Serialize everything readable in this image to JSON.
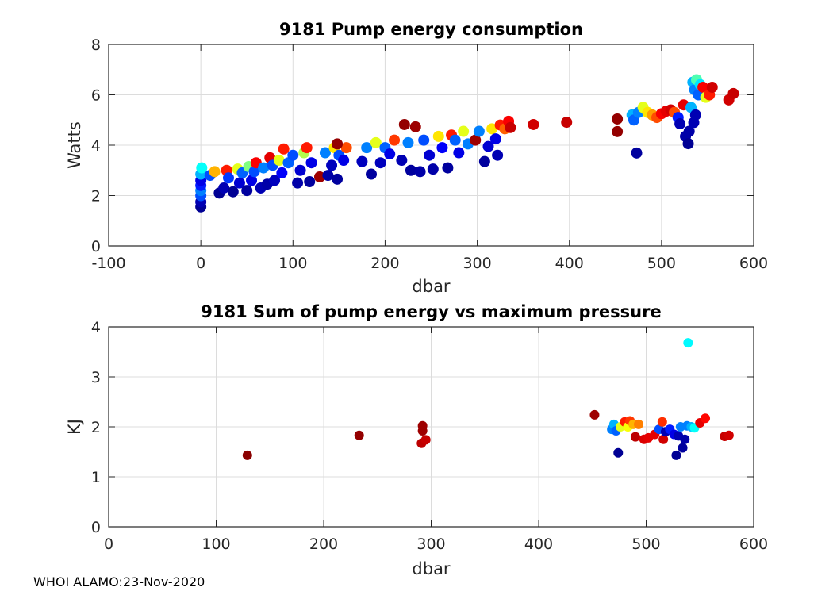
{
  "footer": "WHOI ALAMO:23-Nov-2020",
  "colormap": "jet",
  "chart_data": [
    {
      "type": "scatter",
      "title": "9181 Pump energy consumption",
      "xlabel": "dbar",
      "ylabel": "Watts",
      "xlim": [
        -100,
        600
      ],
      "ylim": [
        0,
        8
      ],
      "xticks": [
        "-100",
        "0",
        "100",
        "200",
        "300",
        "400",
        "500",
        "600"
      ],
      "yticks": [
        "0",
        "2",
        "4",
        "6",
        "8"
      ],
      "grid": true,
      "color_note": "point color encodes profile index on jet scale (0=navy .. 1=dark red)",
      "points": [
        {
          "x": 0,
          "y": 1.55,
          "c": 0.02
        },
        {
          "x": 0,
          "y": 1.75,
          "c": 0.05
        },
        {
          "x": 0,
          "y": 2.0,
          "c": 0.2
        },
        {
          "x": 0,
          "y": 2.2,
          "c": 0.25
        },
        {
          "x": 0,
          "y": 2.4,
          "c": 0.15
        },
        {
          "x": 0,
          "y": 2.6,
          "c": 0.1
        },
        {
          "x": 0,
          "y": 2.85,
          "c": 0.3
        },
        {
          "x": 1,
          "y": 3.1,
          "c": 0.38
        },
        {
          "x": 10,
          "y": 2.8,
          "c": 0.2
        },
        {
          "x": 15,
          "y": 2.95,
          "c": 0.7
        },
        {
          "x": 20,
          "y": 2.1,
          "c": 0.02
        },
        {
          "x": 25,
          "y": 2.3,
          "c": 0.05
        },
        {
          "x": 28,
          "y": 3.0,
          "c": 0.85
        },
        {
          "x": 30,
          "y": 2.7,
          "c": 0.18
        },
        {
          "x": 35,
          "y": 2.15,
          "c": 0.02
        },
        {
          "x": 40,
          "y": 3.05,
          "c": 0.6
        },
        {
          "x": 42,
          "y": 2.5,
          "c": 0.08
        },
        {
          "x": 45,
          "y": 2.9,
          "c": 0.22
        },
        {
          "x": 50,
          "y": 2.2,
          "c": 0.03
        },
        {
          "x": 52,
          "y": 3.15,
          "c": 0.5
        },
        {
          "x": 55,
          "y": 2.6,
          "c": 0.1
        },
        {
          "x": 58,
          "y": 2.95,
          "c": 0.2
        },
        {
          "x": 60,
          "y": 3.3,
          "c": 0.88
        },
        {
          "x": 65,
          "y": 2.3,
          "c": 0.05
        },
        {
          "x": 68,
          "y": 3.1,
          "c": 0.25
        },
        {
          "x": 72,
          "y": 2.45,
          "c": 0.04
        },
        {
          "x": 75,
          "y": 3.5,
          "c": 0.9
        },
        {
          "x": 78,
          "y": 3.2,
          "c": 0.2
        },
        {
          "x": 80,
          "y": 2.6,
          "c": 0.06
        },
        {
          "x": 85,
          "y": 3.4,
          "c": 0.6
        },
        {
          "x": 88,
          "y": 2.9,
          "c": 0.12
        },
        {
          "x": 90,
          "y": 3.85,
          "c": 0.85
        },
        {
          "x": 95,
          "y": 3.3,
          "c": 0.22
        },
        {
          "x": 100,
          "y": 3.6,
          "c": 0.2
        },
        {
          "x": 105,
          "y": 2.5,
          "c": 0.04
        },
        {
          "x": 108,
          "y": 3.0,
          "c": 0.08
        },
        {
          "x": 112,
          "y": 3.7,
          "c": 0.55
        },
        {
          "x": 115,
          "y": 3.9,
          "c": 0.85
        },
        {
          "x": 118,
          "y": 2.55,
          "c": 0.03
        },
        {
          "x": 120,
          "y": 3.3,
          "c": 0.1
        },
        {
          "x": 129,
          "y": 2.74,
          "c": 0.97
        },
        {
          "x": 135,
          "y": 3.7,
          "c": 0.25
        },
        {
          "x": 138,
          "y": 2.8,
          "c": 0.04
        },
        {
          "x": 142,
          "y": 3.2,
          "c": 0.06
        },
        {
          "x": 145,
          "y": 3.9,
          "c": 0.65
        },
        {
          "x": 148,
          "y": 2.65,
          "c": 0.03
        },
        {
          "x": 150,
          "y": 3.6,
          "c": 0.2
        },
        {
          "x": 155,
          "y": 3.4,
          "c": 0.1
        },
        {
          "x": 158,
          "y": 3.9,
          "c": 0.8
        },
        {
          "x": 148,
          "y": 4.05,
          "c": 0.98
        },
        {
          "x": 175,
          "y": 3.35,
          "c": 0.06
        },
        {
          "x": 180,
          "y": 3.9,
          "c": 0.25
        },
        {
          "x": 185,
          "y": 2.85,
          "c": 0.03
        },
        {
          "x": 190,
          "y": 4.1,
          "c": 0.6
        },
        {
          "x": 195,
          "y": 3.3,
          "c": 0.06
        },
        {
          "x": 200,
          "y": 3.9,
          "c": 0.22
        },
        {
          "x": 205,
          "y": 3.65,
          "c": 0.1
        },
        {
          "x": 210,
          "y": 4.2,
          "c": 0.82
        },
        {
          "x": 218,
          "y": 3.4,
          "c": 0.05
        },
        {
          "x": 221,
          "y": 4.82,
          "c": 0.98
        },
        {
          "x": 225,
          "y": 4.1,
          "c": 0.25
        },
        {
          "x": 228,
          "y": 3.0,
          "c": 0.03
        },
        {
          "x": 233,
          "y": 4.73,
          "c": 0.97
        },
        {
          "x": 238,
          "y": 2.95,
          "c": 0.04
        },
        {
          "x": 242,
          "y": 4.2,
          "c": 0.2
        },
        {
          "x": 248,
          "y": 3.6,
          "c": 0.08
        },
        {
          "x": 252,
          "y": 3.05,
          "c": 0.04
        },
        {
          "x": 258,
          "y": 4.35,
          "c": 0.65
        },
        {
          "x": 262,
          "y": 3.9,
          "c": 0.12
        },
        {
          "x": 268,
          "y": 3.1,
          "c": 0.03
        },
        {
          "x": 272,
          "y": 4.4,
          "c": 0.85
        },
        {
          "x": 276,
          "y": 4.2,
          "c": 0.22
        },
        {
          "x": 280,
          "y": 3.7,
          "c": 0.1
        },
        {
          "x": 285,
          "y": 4.55,
          "c": 0.6
        },
        {
          "x": 290,
          "y": 4.05,
          "c": 0.25
        },
        {
          "x": 298,
          "y": 4.2,
          "c": 0.97
        },
        {
          "x": 302,
          "y": 4.55,
          "c": 0.25
        },
        {
          "x": 308,
          "y": 3.35,
          "c": 0.03
        },
        {
          "x": 312,
          "y": 3.95,
          "c": 0.08
        },
        {
          "x": 316,
          "y": 4.65,
          "c": 0.65
        },
        {
          "x": 320,
          "y": 4.25,
          "c": 0.1
        },
        {
          "x": 322,
          "y": 3.6,
          "c": 0.05
        },
        {
          "x": 325,
          "y": 4.8,
          "c": 0.85
        },
        {
          "x": 330,
          "y": 4.65,
          "c": 0.78
        },
        {
          "x": 334,
          "y": 4.95,
          "c": 0.88
        },
        {
          "x": 336,
          "y": 4.7,
          "c": 0.93
        },
        {
          "x": 361,
          "y": 4.82,
          "c": 0.92
        },
        {
          "x": 397,
          "y": 4.91,
          "c": 0.93
        },
        {
          "x": 452,
          "y": 5.04,
          "c": 0.98
        },
        {
          "x": 452,
          "y": 4.54,
          "c": 0.98
        },
        {
          "x": 468,
          "y": 5.2,
          "c": 0.3
        },
        {
          "x": 470,
          "y": 5.0,
          "c": 0.22
        },
        {
          "x": 473,
          "y": 3.69,
          "c": 0.03
        },
        {
          "x": 475,
          "y": 5.3,
          "c": 0.25
        },
        {
          "x": 480,
          "y": 5.5,
          "c": 0.6
        },
        {
          "x": 485,
          "y": 5.3,
          "c": 0.65
        },
        {
          "x": 490,
          "y": 5.2,
          "c": 0.72
        },
        {
          "x": 495,
          "y": 5.1,
          "c": 0.8
        },
        {
          "x": 500,
          "y": 5.25,
          "c": 0.88
        },
        {
          "x": 505,
          "y": 5.35,
          "c": 0.9
        },
        {
          "x": 510,
          "y": 5.4,
          "c": 0.92
        },
        {
          "x": 514,
          "y": 5.3,
          "c": 0.8
        },
        {
          "x": 518,
          "y": 5.1,
          "c": 0.15
        },
        {
          "x": 520,
          "y": 4.85,
          "c": 0.05
        },
        {
          "x": 524,
          "y": 5.6,
          "c": 0.9
        },
        {
          "x": 526,
          "y": 4.35,
          "c": 0.04
        },
        {
          "x": 529,
          "y": 4.06,
          "c": 0.02
        },
        {
          "x": 530,
          "y": 4.55,
          "c": 0.04
        },
        {
          "x": 532,
          "y": 5.5,
          "c": 0.3
        },
        {
          "x": 535,
          "y": 4.9,
          "c": 0.05
        },
        {
          "x": 537,
          "y": 5.2,
          "c": 0.05
        },
        {
          "x": 534,
          "y": 6.5,
          "c": 0.3
        },
        {
          "x": 536,
          "y": 6.2,
          "c": 0.25
        },
        {
          "x": 538,
          "y": 6.6,
          "c": 0.45
        },
        {
          "x": 540,
          "y": 6.0,
          "c": 0.22
        },
        {
          "x": 542,
          "y": 6.4,
          "c": 0.35
        },
        {
          "x": 545,
          "y": 6.3,
          "c": 0.88
        },
        {
          "x": 548,
          "y": 5.9,
          "c": 0.6
        },
        {
          "x": 552,
          "y": 6.0,
          "c": 0.85
        },
        {
          "x": 555,
          "y": 6.3,
          "c": 0.92
        },
        {
          "x": 573,
          "y": 5.8,
          "c": 0.92
        },
        {
          "x": 578,
          "y": 6.05,
          "c": 0.93
        }
      ]
    },
    {
      "type": "scatter",
      "title": "9181 Sum of pump energy vs maximum pressure",
      "xlabel": "dbar",
      "ylabel": "KJ",
      "xlim": [
        0,
        600
      ],
      "ylim": [
        0,
        4
      ],
      "xticks": [
        "0",
        "100",
        "200",
        "300",
        "400",
        "500",
        "600"
      ],
      "yticks": [
        "0",
        "1",
        "2",
        "3",
        "4"
      ],
      "grid": true,
      "points": [
        {
          "x": 129,
          "y": 1.43,
          "c": 0.99
        },
        {
          "x": 233,
          "y": 1.83,
          "c": 0.98
        },
        {
          "x": 292,
          "y": 2.02,
          "c": 0.97
        },
        {
          "x": 292,
          "y": 1.92,
          "c": 0.97
        },
        {
          "x": 291,
          "y": 1.67,
          "c": 0.94
        },
        {
          "x": 295,
          "y": 1.74,
          "c": 0.93
        },
        {
          "x": 452,
          "y": 2.24,
          "c": 0.97
        },
        {
          "x": 468,
          "y": 1.95,
          "c": 0.25
        },
        {
          "x": 470,
          "y": 2.05,
          "c": 0.3
        },
        {
          "x": 472,
          "y": 1.92,
          "c": 0.22
        },
        {
          "x": 474,
          "y": 1.48,
          "c": 0.02
        },
        {
          "x": 476,
          "y": 2.0,
          "c": 0.6
        },
        {
          "x": 480,
          "y": 2.1,
          "c": 0.85
        },
        {
          "x": 483,
          "y": 2.0,
          "c": 0.62
        },
        {
          "x": 485,
          "y": 2.12,
          "c": 0.82
        },
        {
          "x": 488,
          "y": 2.05,
          "c": 0.7
        },
        {
          "x": 490,
          "y": 1.8,
          "c": 0.94
        },
        {
          "x": 493,
          "y": 2.05,
          "c": 0.75
        },
        {
          "x": 498,
          "y": 1.75,
          "c": 0.91
        },
        {
          "x": 502,
          "y": 1.78,
          "c": 0.9
        },
        {
          "x": 508,
          "y": 1.85,
          "c": 0.9
        },
        {
          "x": 512,
          "y": 1.95,
          "c": 0.2
        },
        {
          "x": 515,
          "y": 2.1,
          "c": 0.83
        },
        {
          "x": 516,
          "y": 1.75,
          "c": 0.92
        },
        {
          "x": 518,
          "y": 1.9,
          "c": 0.05
        },
        {
          "x": 522,
          "y": 1.95,
          "c": 0.15
        },
        {
          "x": 526,
          "y": 1.85,
          "c": 0.1
        },
        {
          "x": 528,
          "y": 1.43,
          "c": 0.02
        },
        {
          "x": 530,
          "y": 1.82,
          "c": 0.05
        },
        {
          "x": 532,
          "y": 2.0,
          "c": 0.25
        },
        {
          "x": 534,
          "y": 1.58,
          "c": 0.03
        },
        {
          "x": 536,
          "y": 1.75,
          "c": 0.04
        },
        {
          "x": 538,
          "y": 2.02,
          "c": 0.25
        },
        {
          "x": 539,
          "y": 3.68,
          "c": 0.37
        },
        {
          "x": 542,
          "y": 2.0,
          "c": 0.3
        },
        {
          "x": 545,
          "y": 1.98,
          "c": 0.38
        },
        {
          "x": 550,
          "y": 2.08,
          "c": 0.9
        },
        {
          "x": 555,
          "y": 2.17,
          "c": 0.87
        },
        {
          "x": 573,
          "y": 1.81,
          "c": 0.93
        },
        {
          "x": 577,
          "y": 1.83,
          "c": 0.92
        }
      ]
    }
  ]
}
